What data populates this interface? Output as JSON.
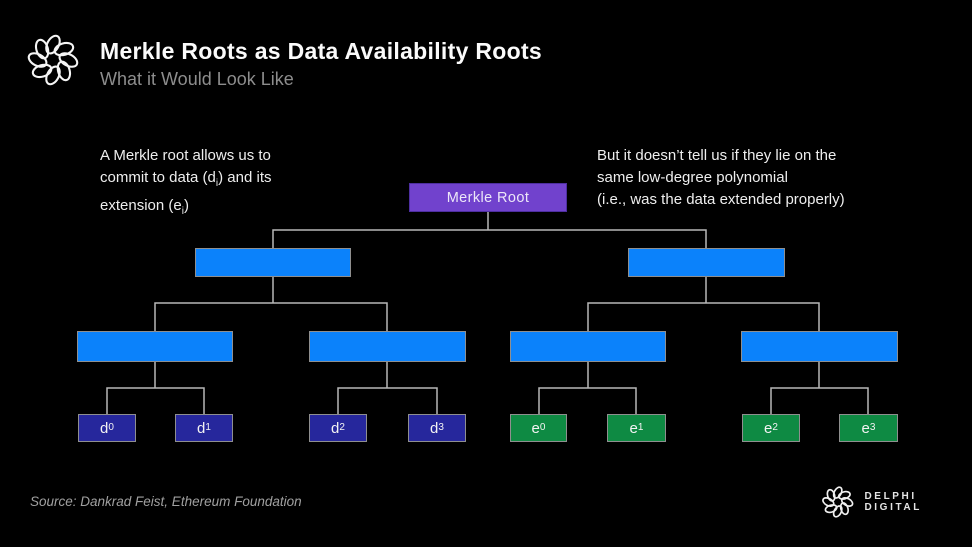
{
  "slide": {
    "header": {
      "title": "Merkle Roots as Data Availability Roots",
      "subtitle": "What it Would Look Like"
    },
    "annotations": {
      "left": {
        "segments": [
          {
            "t": "A Merkle root allows us to"
          },
          {
            "br": true
          },
          {
            "t": "commit to data (d"
          },
          {
            "t": "i",
            "sub": true
          },
          {
            "t": ") and its"
          },
          {
            "br": true
          },
          {
            "t": "extension (e"
          },
          {
            "t": "i",
            "sub": true
          },
          {
            "t": ")"
          }
        ]
      },
      "right": {
        "segments": [
          {
            "t": "But it doesn’t tell us if they lie on the"
          },
          {
            "br": true
          },
          {
            "t": "same low-degree polynomial"
          },
          {
            "br": true
          },
          {
            "t": "(i.e., was the data extended properly)"
          }
        ]
      }
    },
    "tree": {
      "root_label": "Merkle Root",
      "leaves": [
        {
          "label": [
            {
              "t": "d"
            },
            {
              "t": "0",
              "sub": true
            }
          ]
        },
        {
          "label": [
            {
              "t": "d"
            },
            {
              "t": "1",
              "sub": true
            }
          ]
        },
        {
          "label": [
            {
              "t": "d"
            },
            {
              "t": "2",
              "sub": true
            }
          ]
        },
        {
          "label": [
            {
              "t": "d"
            },
            {
              "t": "3",
              "sub": true
            }
          ]
        },
        {
          "label": [
            {
              "t": "e"
            },
            {
              "t": "0",
              "sub": true
            }
          ]
        },
        {
          "label": [
            {
              "t": "e"
            },
            {
              "t": "1",
              "sub": true
            }
          ]
        },
        {
          "label": [
            {
              "t": "e"
            },
            {
              "t": "2",
              "sub": true
            }
          ]
        },
        {
          "label": [
            {
              "t": "e"
            },
            {
              "t": "3",
              "sub": true
            }
          ]
        }
      ]
    },
    "footer": {
      "source": "Source: Dankrad Feist, Ethereum Foundation",
      "brand": "DELPHI DIGITAL"
    },
    "colors": {
      "background": "#000000",
      "root_purple": "#7142cd",
      "node_blue": "#0b82fb",
      "data_navy": "#26279c",
      "extension_green": "#0e8a43",
      "connector": "#b8b8b8"
    }
  }
}
